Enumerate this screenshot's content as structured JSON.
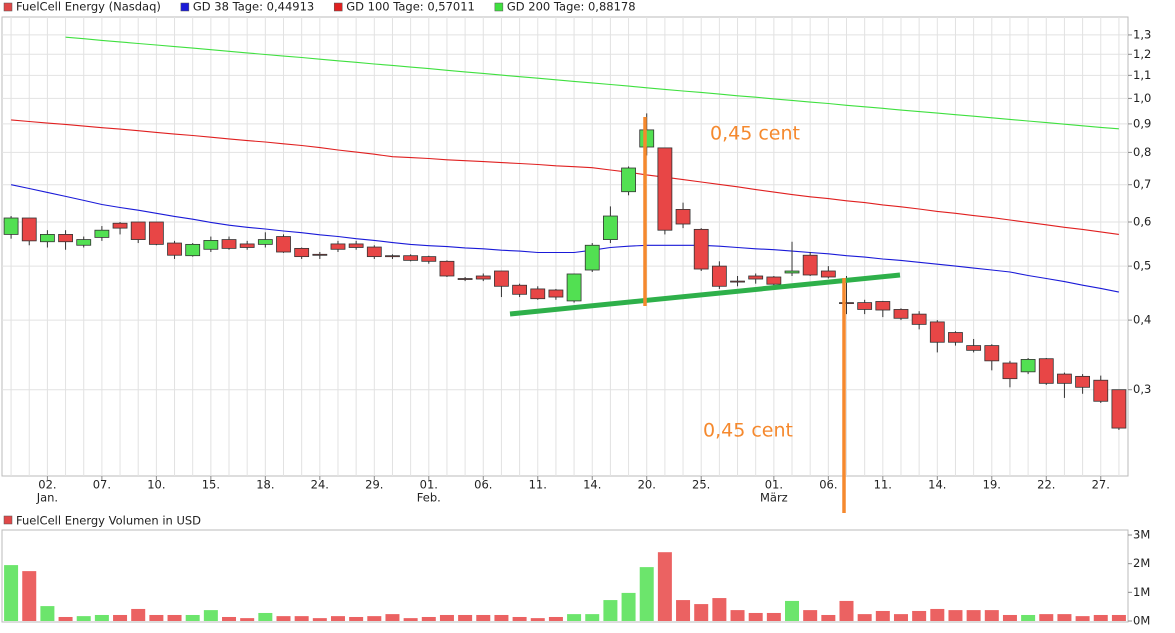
{
  "chart_data": [
    {
      "type": "candlestick",
      "name": "FuelCell Energy (Nasdaq)",
      "color": "#e04848",
      "up_color": "#52e052",
      "down_color": "#e84646",
      "log_scale": true,
      "grid": true,
      "categories": [
        null,
        null,
        "02.",
        null,
        null,
        "07.",
        null,
        null,
        "10.",
        null,
        null,
        "15.",
        null,
        null,
        "18.",
        null,
        null,
        "24.",
        null,
        null,
        "29.",
        null,
        null,
        "01.",
        null,
        null,
        "06.",
        null,
        null,
        "11.",
        null,
        null,
        "14.",
        null,
        null,
        "20.",
        null,
        null,
        "25.",
        null,
        null,
        null,
        "01.",
        null,
        null,
        "06.",
        null,
        null,
        "11.",
        null,
        null,
        "14.",
        null,
        null,
        "19.",
        null,
        null,
        "22.",
        null,
        null,
        "27.",
        null
      ],
      "x_months": [
        null,
        null,
        "Jan.",
        null,
        null,
        null,
        null,
        null,
        null,
        null,
        null,
        null,
        null,
        null,
        null,
        null,
        null,
        null,
        null,
        null,
        null,
        null,
        null,
        "Feb.",
        null,
        null,
        null,
        null,
        null,
        null,
        null,
        null,
        null,
        null,
        null,
        null,
        null,
        null,
        null,
        null,
        null,
        null,
        "März",
        null,
        null,
        null,
        null,
        null,
        null,
        null,
        null,
        null,
        null,
        null,
        null,
        null,
        null,
        null,
        null,
        null,
        null,
        null
      ],
      "open": [
        0.57,
        0.61,
        0.553,
        0.57,
        0.545,
        0.563,
        0.597,
        0.6,
        0.6,
        0.55,
        0.522,
        0.536,
        0.558,
        0.548,
        0.547,
        0.565,
        0.538,
        0.525,
        0.548,
        0.548,
        0.541,
        0.522,
        0.522,
        0.52,
        0.51,
        0.475,
        0.48,
        0.49,
        0.462,
        0.455,
        0.453,
        0.433,
        0.492,
        0.558,
        0.68,
        0.818,
        0.815,
        0.632,
        0.582,
        0.5,
        0.47,
        0.48,
        0.478,
        0.486,
        0.523,
        0.49,
        0.43,
        0.43,
        0.432,
        0.418,
        0.41,
        0.397,
        0.38,
        0.36,
        0.36,
        0.335,
        0.323,
        0.341,
        0.32,
        0.317,
        0.312,
        0.3
      ],
      "high": [
        0.615,
        0.61,
        0.58,
        0.58,
        0.565,
        0.59,
        0.6,
        0.6,
        0.6,
        0.555,
        0.55,
        0.565,
        0.565,
        0.555,
        0.575,
        0.57,
        0.54,
        0.53,
        0.555,
        0.555,
        0.545,
        0.525,
        0.525,
        0.522,
        0.512,
        0.478,
        0.485,
        0.49,
        0.465,
        0.46,
        0.455,
        0.485,
        0.55,
        0.64,
        0.755,
        0.94,
        0.815,
        0.65,
        0.585,
        0.51,
        0.48,
        0.485,
        0.48,
        0.553,
        0.53,
        0.5,
        0.48,
        0.435,
        0.433,
        0.42,
        0.415,
        0.4,
        0.382,
        0.37,
        0.362,
        0.338,
        0.342,
        0.342,
        0.322,
        0.32,
        0.318,
        0.3
      ],
      "low": [
        0.56,
        0.545,
        0.54,
        0.535,
        0.54,
        0.555,
        0.57,
        0.55,
        0.545,
        0.515,
        0.52,
        0.53,
        0.535,
        0.535,
        0.54,
        0.528,
        0.515,
        0.515,
        0.53,
        0.535,
        0.515,
        0.515,
        0.51,
        0.505,
        0.478,
        0.47,
        0.47,
        0.44,
        0.44,
        0.435,
        0.435,
        0.43,
        0.488,
        0.55,
        0.67,
        0.79,
        0.57,
        0.585,
        0.49,
        0.455,
        0.46,
        0.465,
        0.46,
        0.48,
        0.48,
        0.475,
        0.41,
        0.41,
        0.405,
        0.4,
        0.385,
        0.35,
        0.36,
        0.35,
        0.325,
        0.303,
        0.32,
        0.306,
        0.29,
        0.295,
        0.284,
        0.254
      ],
      "close": [
        0.61,
        0.555,
        0.57,
        0.553,
        0.558,
        0.58,
        0.585,
        0.558,
        0.547,
        0.523,
        0.547,
        0.556,
        0.538,
        0.54,
        0.558,
        0.53,
        0.52,
        0.523,
        0.536,
        0.54,
        0.52,
        0.521,
        0.512,
        0.51,
        0.48,
        0.474,
        0.474,
        0.46,
        0.445,
        0.437,
        0.44,
        0.484,
        0.545,
        0.615,
        0.75,
        0.878,
        0.58,
        0.595,
        0.494,
        0.46,
        0.469,
        0.474,
        0.464,
        0.49,
        0.482,
        0.478,
        0.429,
        0.418,
        0.417,
        0.403,
        0.393,
        0.365,
        0.365,
        0.353,
        0.338,
        0.314,
        0.34,
        0.308,
        0.308,
        0.303,
        0.286,
        0.256
      ],
      "series": [
        {
          "name": "GD 38 Tage: 0,44913",
          "color": "#1a1ad8",
          "values": [
            0.7,
            0.689,
            0.678,
            0.667,
            0.656,
            0.645,
            0.637,
            0.63,
            0.622,
            0.614,
            0.607,
            0.599,
            0.592,
            0.587,
            0.583,
            0.578,
            0.574,
            0.569,
            0.565,
            0.56,
            0.556,
            0.551,
            0.547,
            0.544,
            0.542,
            0.539,
            0.537,
            0.534,
            0.532,
            0.529,
            0.529,
            0.529,
            0.534,
            0.54,
            0.543,
            0.545,
            0.545,
            0.545,
            0.545,
            0.543,
            0.54,
            0.537,
            0.535,
            0.532,
            0.529,
            0.526,
            0.522,
            0.519,
            0.515,
            0.512,
            0.508,
            0.504,
            0.5,
            0.496,
            0.492,
            0.488,
            0.481,
            0.475,
            0.469,
            0.462,
            0.456,
            0.449
          ]
        },
        {
          "name": "GD 100 Tage: 0,57011",
          "color": "#e02020",
          "values": [
            0.915,
            0.909,
            0.903,
            0.898,
            0.892,
            0.886,
            0.881,
            0.875,
            0.869,
            0.863,
            0.858,
            0.852,
            0.846,
            0.84,
            0.835,
            0.829,
            0.823,
            0.816,
            0.808,
            0.801,
            0.794,
            0.786,
            0.783,
            0.78,
            0.776,
            0.773,
            0.77,
            0.767,
            0.764,
            0.761,
            0.757,
            0.754,
            0.751,
            0.744,
            0.737,
            0.729,
            0.722,
            0.715,
            0.708,
            0.701,
            0.694,
            0.686,
            0.679,
            0.672,
            0.666,
            0.661,
            0.655,
            0.65,
            0.644,
            0.639,
            0.633,
            0.627,
            0.622,
            0.616,
            0.611,
            0.605,
            0.599,
            0.593,
            0.587,
            0.582,
            0.576,
            0.57
          ]
        },
        {
          "name": "GD 200 Tage: 0,88178",
          "color": "#3fe03f",
          "values": [
            null,
            null,
            null,
            1.288,
            1.28,
            1.271,
            1.263,
            1.255,
            1.247,
            1.239,
            1.231,
            1.223,
            1.215,
            1.207,
            1.199,
            1.191,
            1.184,
            1.176,
            1.168,
            1.161,
            1.153,
            1.146,
            1.138,
            1.131,
            1.123,
            1.116,
            1.109,
            1.101,
            1.094,
            1.087,
            1.08,
            1.073,
            1.066,
            1.059,
            1.052,
            1.045,
            1.038,
            1.031,
            1.025,
            1.018,
            1.011,
            1.005,
            0.998,
            0.992,
            0.985,
            0.979,
            0.972,
            0.966,
            0.96,
            0.953,
            0.947,
            0.941,
            0.935,
            0.929,
            0.923,
            0.917,
            0.911,
            0.905,
            0.899,
            0.893,
            0.887,
            0.882
          ]
        }
      ],
      "ylim": [
        0.21,
        1.4
      ],
      "yticks": [
        {
          "value": 0.3,
          "label": "0,3"
        },
        {
          "value": 0.4,
          "label": "0,4"
        },
        {
          "value": 0.5,
          "label": "0,5"
        },
        {
          "value": 0.6,
          "label": "0,6"
        },
        {
          "value": 0.7,
          "label": "0,7"
        },
        {
          "value": 0.8,
          "label": "0,8"
        },
        {
          "value": 0.9,
          "label": "0,9"
        },
        {
          "value": 1.0,
          "label": "1,0"
        },
        {
          "value": 1.1,
          "label": "1,1"
        },
        {
          "value": 1.2,
          "label": "1,2"
        },
        {
          "value": 1.3,
          "label": "1,3"
        }
      ],
      "annotations": [
        {
          "text": "0,45 cent"
        },
        {
          "text": "0,45 cent"
        }
      ]
    },
    {
      "type": "bar",
      "title": "FuelCell Energy Volumen in USD",
      "color": "#e04848",
      "values": [
        1.95,
        1.74,
        0.52,
        0.14,
        0.17,
        0.21,
        0.21,
        0.42,
        0.21,
        0.21,
        0.21,
        0.38,
        0.14,
        0.1,
        0.28,
        0.17,
        0.17,
        0.1,
        0.17,
        0.14,
        0.17,
        0.24,
        0.1,
        0.14,
        0.21,
        0.21,
        0.21,
        0.21,
        0.14,
        0.1,
        0.14,
        0.24,
        0.24,
        0.73,
        0.98,
        1.88,
        2.4,
        0.73,
        0.59,
        0.8,
        0.38,
        0.28,
        0.28,
        0.7,
        0.38,
        0.21,
        0.7,
        0.24,
        0.35,
        0.24,
        0.35,
        0.42,
        0.38,
        0.38,
        0.38,
        0.21,
        0.21,
        0.24,
        0.24,
        0.17,
        0.21,
        0.21
      ],
      "ylim": [
        0,
        3
      ],
      "yticks": [
        {
          "value": 0,
          "label": "0M"
        },
        {
          "value": 1,
          "label": "1M"
        },
        {
          "value": 2,
          "label": "2M"
        },
        {
          "value": 3,
          "label": "3M"
        }
      ]
    }
  ]
}
